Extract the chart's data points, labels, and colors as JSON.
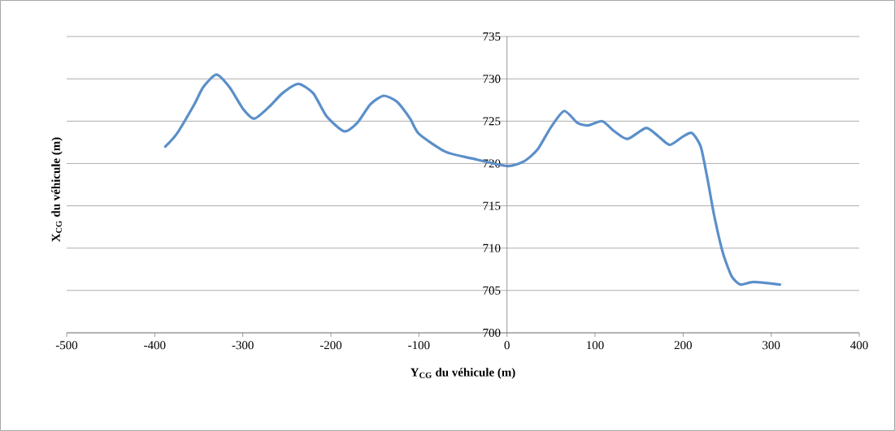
{
  "chart_data": {
    "type": "line",
    "xlabel": "Y$_{CG}$ du véhicule (m)",
    "ylabel": "X$_{CG}$ du véhicule (m)",
    "xlim": [
      -500,
      400
    ],
    "xticks": [
      -500,
      -400,
      -300,
      -200,
      -100,
      0,
      100,
      200,
      300,
      400
    ],
    "ylim": [
      700,
      735
    ],
    "yticks": [
      700,
      705,
      710,
      715,
      720,
      725,
      730,
      735
    ],
    "grid": "y",
    "series": [
      {
        "color": "#5b8fc9",
        "x": [
          -388,
          -375,
          -355,
          -345,
          -330,
          -315,
          -300,
          -287,
          -270,
          -255,
          -237,
          -220,
          -205,
          -185,
          -170,
          -155,
          -140,
          -125,
          -110,
          -100,
          -70,
          -40,
          0,
          20,
          35,
          50,
          65,
          80,
          92,
          108,
          122,
          137,
          158,
          172,
          185,
          200,
          210,
          220,
          228,
          235,
          245,
          255,
          265,
          280,
          310
        ],
        "values": [
          722,
          723.5,
          727,
          729,
          730.5,
          729,
          726.5,
          725.3,
          726.7,
          728.3,
          729.4,
          728.3,
          725.6,
          723.8,
          724.8,
          727,
          728,
          727.3,
          725.3,
          723.5,
          721.4,
          720.6,
          719.7,
          720.3,
          721.7,
          724.3,
          726.2,
          724.8,
          724.5,
          725,
          723.8,
          722.9,
          724.2,
          723.2,
          722.2,
          723.2,
          723.6,
          722,
          718,
          714,
          709.5,
          706.7,
          705.7,
          706,
          705.7
        ]
      }
    ]
  }
}
